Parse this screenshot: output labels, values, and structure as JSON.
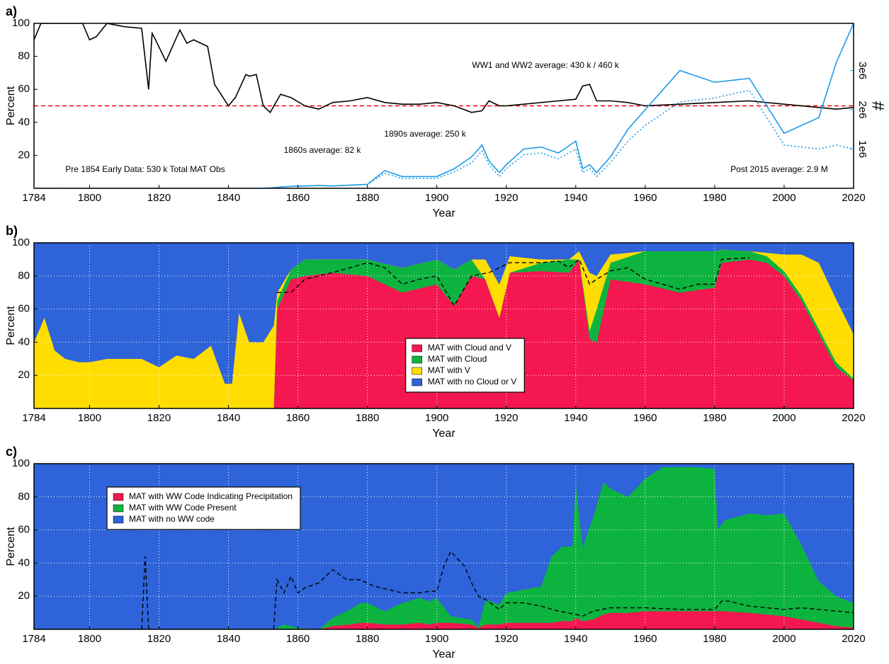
{
  "chart_data": [
    {
      "type": "line",
      "title": "a)",
      "xlabel": "Year",
      "ylabel": "Percent",
      "y2label": "#",
      "xlim": [
        1784,
        2020
      ],
      "xticks": [
        1784,
        1800,
        1820,
        1840,
        1860,
        1880,
        1900,
        1920,
        1940,
        1960,
        1980,
        2000,
        2020
      ],
      "ylim": [
        0,
        100
      ],
      "yticks": [
        20,
        40,
        60,
        80,
        100
      ],
      "y2lim": [
        0,
        4200000
      ],
      "y2ticks": [
        {
          "value": 1000000,
          "label": "1e6"
        },
        {
          "value": 2000000,
          "label": "2e6"
        },
        {
          "value": 3000000,
          "label": "3e6"
        }
      ],
      "y2color": "#1e9be8",
      "grid": false,
      "x": [
        1784,
        1786,
        1790,
        1795,
        1798,
        1800,
        1802,
        1805,
        1810,
        1815,
        1817,
        1818,
        1819,
        1822,
        1826,
        1828,
        1830,
        1834,
        1836,
        1840,
        1842,
        1845,
        1846,
        1848,
        1850,
        1852,
        1855,
        1858,
        1862,
        1866,
        1870,
        1875,
        1880,
        1885,
        1890,
        1895,
        1900,
        1905,
        1910,
        1913,
        1915,
        1918,
        1920,
        1925,
        1930,
        1935,
        1940,
        1942,
        1944,
        1946,
        1950,
        1955,
        1960,
        1970,
        1980,
        1990,
        2000,
        2010,
        2015,
        2020
      ],
      "series": [
        {
          "color": "#000000",
          "style": "solid",
          "values": [
            90,
            100,
            100,
            100,
            100,
            90,
            92,
            100,
            98,
            97,
            60,
            94,
            90,
            77,
            96,
            88,
            90,
            86,
            63,
            50,
            55,
            69,
            68,
            69,
            50,
            46,
            57,
            55,
            50,
            48,
            52,
            53,
            55,
            52,
            51,
            51,
            52,
            50,
            46,
            47,
            53,
            50,
            50,
            51,
            52,
            53,
            54,
            62,
            63,
            53,
            53,
            52,
            50,
            51,
            52,
            53,
            51,
            49,
            48,
            49
          ]
        },
        {
          "color": "#1e9be8",
          "style": "solid",
          "axis": "y2",
          "values": [
            0,
            0,
            0,
            0,
            0,
            0,
            0,
            0,
            0,
            0,
            0,
            0,
            0,
            0,
            0,
            0,
            0,
            0,
            0,
            0,
            0,
            0,
            0,
            0,
            0,
            10000,
            30000,
            50000,
            60000,
            70000,
            60000,
            80000,
            100000,
            450000,
            300000,
            300000,
            300000,
            500000,
            800000,
            1100000,
            700000,
            400000,
            600000,
            1000000,
            1050000,
            900000,
            1200000,
            500000,
            600000,
            400000,
            800000,
            1500000,
            2000000,
            3000000,
            2700000,
            2800000,
            1400000,
            1800000,
            3200000,
            4200000
          ]
        },
        {
          "color": "#1e9be8",
          "style": "dotted",
          "axis": "y2",
          "values": [
            0,
            0,
            0,
            0,
            0,
            0,
            0,
            0,
            0,
            0,
            0,
            0,
            0,
            0,
            0,
            0,
            0,
            0,
            0,
            0,
            0,
            0,
            0,
            0,
            0,
            10000,
            30000,
            50000,
            60000,
            70000,
            60000,
            80000,
            100000,
            380000,
            250000,
            250000,
            250000,
            420000,
            650000,
            950000,
            600000,
            300000,
            500000,
            850000,
            900000,
            750000,
            1000000,
            400000,
            500000,
            300000,
            650000,
            1200000,
            1600000,
            2200000,
            2300000,
            2500000,
            1100000,
            1000000,
            1100000,
            1000000
          ]
        }
      ],
      "hline": {
        "value": 50,
        "color": "#ff0000"
      },
      "annotations": [
        "WW1 and WW2 average: 430 k / 460 k",
        "1890s average: 250 k",
        "1860s average: 82 k",
        "Pre 1854 Early Data: 530 k Total MAT Obs",
        "Post 2015 average: 2.9 M"
      ],
      "annotation_color": "#1e9be8"
    },
    {
      "type": "stacked_area",
      "title": "b)",
      "xlabel": "Year",
      "ylabel": "Percent",
      "xlim": [
        1784,
        2020
      ],
      "xticks": [
        1784,
        1800,
        1820,
        1840,
        1860,
        1880,
        1900,
        1920,
        1940,
        1960,
        1980,
        2000,
        2020
      ],
      "ylim": [
        0,
        100
      ],
      "yticks": [
        20,
        40,
        60,
        80,
        100
      ],
      "grid": true,
      "legend_loc": "center",
      "x": [
        1784,
        1787,
        1790,
        1793,
        1797,
        1800,
        1805,
        1810,
        1815,
        1820,
        1825,
        1830,
        1835,
        1839,
        1841,
        1843,
        1846,
        1850,
        1853,
        1854,
        1858,
        1862,
        1870,
        1880,
        1890,
        1900,
        1905,
        1910,
        1914,
        1918,
        1921,
        1930,
        1938,
        1941,
        1944,
        1946,
        1950,
        1960,
        1970,
        1980,
        1982,
        1990,
        1995,
        2000,
        2005,
        2010,
        2015,
        2020
      ],
      "series": [
        {
          "name": "MAT with Cloud and V",
          "color": "#f5174f",
          "values": [
            0,
            0,
            0,
            0,
            0,
            0,
            0,
            0,
            0,
            0,
            0,
            0,
            0,
            0,
            0,
            0,
            0,
            0,
            0,
            60,
            78,
            80,
            82,
            80,
            70,
            75,
            62,
            80,
            78,
            55,
            82,
            83,
            82,
            90,
            42,
            40,
            78,
            75,
            70,
            73,
            88,
            90,
            88,
            80,
            65,
            45,
            25,
            17
          ]
        },
        {
          "name": "MAT with Cloud",
          "color": "#0db33f",
          "values": [
            0,
            0,
            0,
            0,
            0,
            0,
            0,
            0,
            0,
            0,
            0,
            0,
            0,
            0,
            0,
            0,
            0,
            0,
            0,
            5,
            6,
            10,
            8,
            10,
            15,
            15,
            22,
            10,
            0,
            0,
            0,
            5,
            8,
            0,
            5,
            20,
            10,
            20,
            25,
            22,
            8,
            5,
            4,
            3,
            3,
            3,
            3,
            1
          ]
        },
        {
          "name": "MAT with V",
          "color": "#ffdd00",
          "values": [
            40,
            55,
            35,
            30,
            28,
            28,
            30,
            30,
            30,
            25,
            32,
            30,
            38,
            15,
            15,
            58,
            40,
            40,
            50,
            5,
            0,
            0,
            0,
            0,
            0,
            0,
            0,
            0,
            12,
            20,
            10,
            2,
            0,
            5,
            35,
            20,
            5,
            0,
            0,
            0,
            0,
            0,
            2,
            10,
            25,
            40,
            38,
            27
          ]
        },
        {
          "name": "MAT with no Cloud or V",
          "color": "#2e63d9",
          "values": [
            60,
            45,
            65,
            70,
            72,
            72,
            70,
            70,
            70,
            75,
            68,
            70,
            62,
            85,
            85,
            42,
            60,
            60,
            50,
            30,
            16,
            10,
            10,
            10,
            15,
            10,
            16,
            10,
            10,
            25,
            8,
            10,
            10,
            5,
            18,
            20,
            7,
            5,
            5,
            5,
            4,
            5,
            6,
            7,
            7,
            12,
            34,
            55
          ]
        }
      ],
      "overlay": {
        "color": "#000000",
        "style": "dashed",
        "x": [
          1854,
          1858,
          1862,
          1870,
          1875,
          1880,
          1885,
          1890,
          1895,
          1900,
          1905,
          1910,
          1915,
          1918,
          1921,
          1930,
          1935,
          1938,
          1941,
          1944,
          1946,
          1950,
          1955,
          1960,
          1970,
          1975,
          1980,
          1982,
          1990
        ],
        "values": [
          70,
          70,
          78,
          82,
          85,
          88,
          85,
          75,
          78,
          80,
          62,
          80,
          82,
          85,
          88,
          88,
          89,
          85,
          90,
          75,
          78,
          83,
          85,
          78,
          72,
          75,
          75,
          90,
          91
        ]
      }
    },
    {
      "type": "stacked_area",
      "title": "c)",
      "xlabel": "Year",
      "ylabel": "Percent",
      "xlim": [
        1784,
        2020
      ],
      "xticks": [
        1784,
        1800,
        1820,
        1840,
        1860,
        1880,
        1900,
        1920,
        1940,
        1960,
        1980,
        2000,
        2020
      ],
      "ylim": [
        0,
        100
      ],
      "yticks": [
        20,
        40,
        60,
        80,
        100
      ],
      "grid": true,
      "legend_loc": "upper left",
      "x": [
        1784,
        1853,
        1856,
        1860,
        1866,
        1870,
        1875,
        1878,
        1880,
        1885,
        1890,
        1895,
        1898,
        1900,
        1904,
        1910,
        1912,
        1914,
        1918,
        1920,
        1925,
        1930,
        1933,
        1936,
        1939,
        1940,
        1942,
        1945,
        1948,
        1950,
        1955,
        1960,
        1965,
        1970,
        1975,
        1980,
        1981,
        1983,
        1990,
        1995,
        2000,
        2005,
        2010,
        2015,
        2020
      ],
      "series": [
        {
          "name": "MAT with WW Code Indicating Precipitation",
          "color": "#f5174f",
          "values": [
            0,
            0,
            0,
            0,
            0,
            2,
            3,
            4,
            4,
            3,
            3,
            4,
            3,
            4,
            4,
            3,
            1,
            3,
            3,
            4,
            4,
            4,
            4,
            5,
            5,
            7,
            5,
            6,
            9,
            10,
            10,
            11,
            11,
            11,
            11,
            11,
            11,
            11,
            10,
            9,
            8,
            6,
            4,
            2,
            1
          ]
        },
        {
          "name": "MAT with WW Code Present",
          "color": "#0db33f",
          "values": [
            0,
            0,
            3,
            1,
            0,
            5,
            9,
            12,
            12,
            8,
            13,
            15,
            14,
            15,
            4,
            3,
            1,
            15,
            12,
            18,
            20,
            22,
            40,
            45,
            45,
            82,
            45,
            62,
            80,
            75,
            70,
            80,
            87,
            87,
            87,
            86,
            50,
            55,
            60,
            60,
            62,
            45,
            25,
            18,
            15
          ]
        },
        {
          "name": "MAT with no WW code",
          "color": "#2e63d9",
          "values": [
            100,
            100,
            97,
            99,
            100,
            93,
            88,
            84,
            84,
            89,
            84,
            81,
            83,
            81,
            92,
            94,
            98,
            82,
            85,
            78,
            76,
            74,
            56,
            50,
            50,
            11,
            50,
            32,
            11,
            15,
            20,
            9,
            2,
            2,
            2,
            3,
            39,
            34,
            30,
            31,
            30,
            49,
            71,
            80,
            84
          ]
        }
      ],
      "overlay": {
        "color": "#000000",
        "style": "dashed",
        "x": [
          1815,
          1816,
          1817,
          1818,
          1853,
          1854,
          1856,
          1858,
          1860,
          1862,
          1866,
          1870,
          1874,
          1878,
          1882,
          1886,
          1890,
          1895,
          1898,
          1900,
          1902,
          1904,
          1908,
          1910,
          1912,
          1914,
          1918,
          1920,
          1925,
          1930,
          1935,
          1940,
          1942,
          1945,
          1950,
          1960,
          1970,
          1980,
          1982,
          1984,
          1990,
          2000,
          2005,
          2010,
          2020
        ],
        "values": [
          0,
          44,
          0,
          null,
          0,
          30,
          22,
          32,
          22,
          25,
          28,
          36,
          30,
          30,
          26,
          24,
          22,
          22,
          23,
          23,
          38,
          47,
          38,
          28,
          20,
          18,
          12,
          16,
          16,
          14,
          11,
          9,
          8,
          11,
          13,
          13,
          12,
          12,
          17,
          17,
          14,
          12,
          13,
          12,
          10
        ]
      }
    }
  ]
}
